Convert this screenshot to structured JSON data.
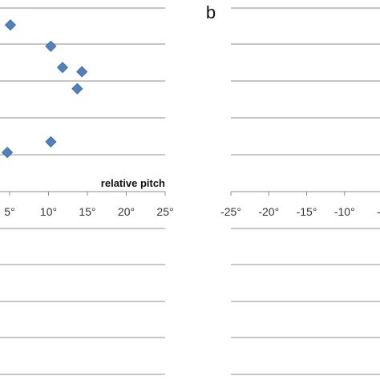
{
  "chart_data": [
    {
      "type": "scatter",
      "panel": "",
      "xlabel": "relative pitch",
      "ylabel": "",
      "title": "",
      "xlim": [
        -5,
        25
      ],
      "xticks": [
        5,
        10,
        15,
        20,
        25
      ],
      "x_tick_labels": [
        "5°",
        "10°",
        "15°",
        "20°",
        "25°"
      ],
      "grid": true,
      "marker_color": "#4f81bd",
      "series": [
        {
          "points": [
            {
              "x": 5.1,
              "y": 8.9
            },
            {
              "x": 10.3,
              "y": 7.9
            },
            {
              "x": 11.8,
              "y": 6.9
            },
            {
              "x": 14.3,
              "y": 6.7
            },
            {
              "x": 13.7,
              "y": 5.9
            },
            {
              "x": 10.3,
              "y": 3.4
            },
            {
              "x": 4.7,
              "y": 2.9
            }
          ]
        }
      ]
    },
    {
      "type": "scatter",
      "panel": "b",
      "xlabel": "",
      "ylabel": "",
      "title": "",
      "xlim": [
        -25,
        0
      ],
      "xticks": [
        -25,
        -20,
        -15,
        -10,
        -5
      ],
      "x_tick_labels": [
        "-25°",
        "-20°",
        "-15°",
        "-10°",
        "-"
      ],
      "grid": true,
      "series": []
    }
  ]
}
